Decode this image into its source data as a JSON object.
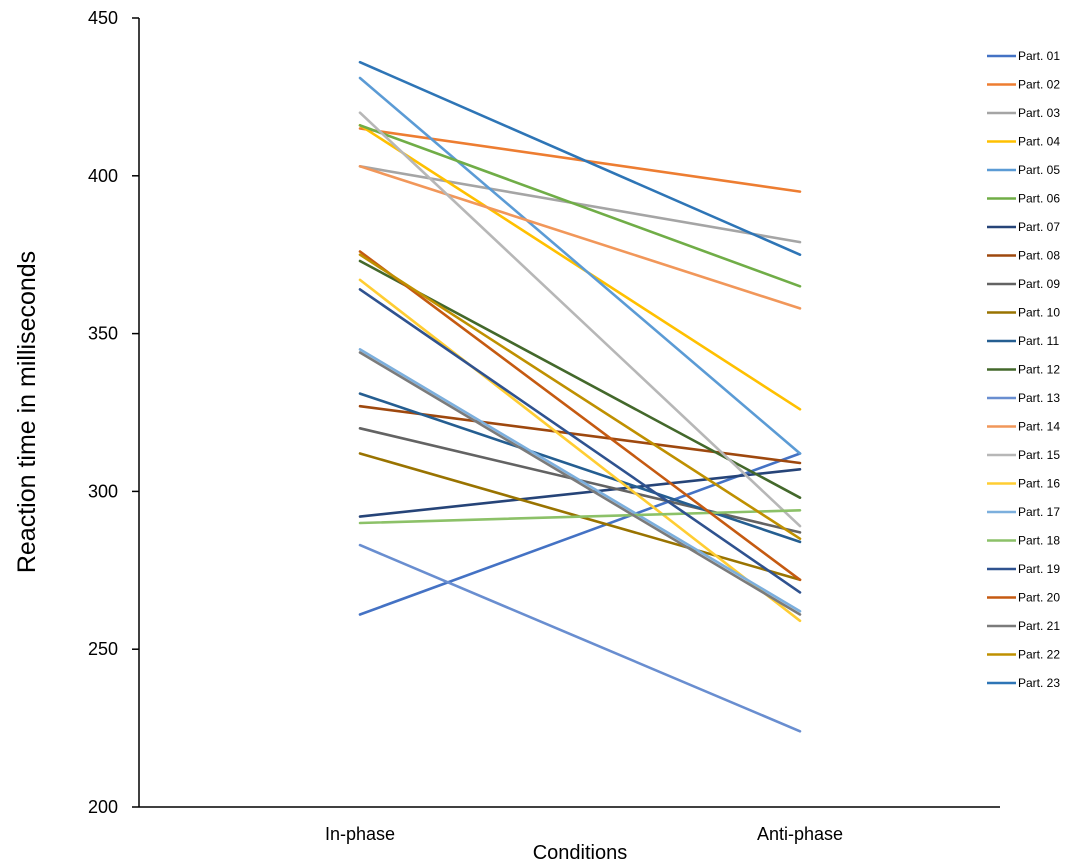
{
  "chart_data": {
    "type": "line",
    "title": "",
    "xlabel": "Conditions",
    "ylabel": "Reaction time in milliseconds",
    "categories": [
      "In-phase",
      "Anti-phase"
    ],
    "ylim": [
      200,
      450
    ],
    "yticks": [
      "200",
      "250",
      "300",
      "350",
      "400",
      "450"
    ],
    "grid": false,
    "legend_position": "right",
    "series": [
      {
        "name": "Part. 01",
        "color": "#4472C4",
        "values": [
          261,
          312
        ]
      },
      {
        "name": "Part. 02",
        "color": "#ED7D31",
        "values": [
          415,
          395
        ]
      },
      {
        "name": "Part. 03",
        "color": "#A5A5A5",
        "values": [
          403,
          379
        ]
      },
      {
        "name": "Part. 04",
        "color": "#FFC000",
        "values": [
          416,
          326
        ]
      },
      {
        "name": "Part. 05",
        "color": "#5B9BD5",
        "values": [
          431,
          312
        ]
      },
      {
        "name": "Part. 06",
        "color": "#70AD47",
        "values": [
          416,
          365
        ]
      },
      {
        "name": "Part. 07",
        "color": "#264478",
        "values": [
          292,
          307
        ]
      },
      {
        "name": "Part. 08",
        "color": "#9E480E",
        "values": [
          327,
          309
        ]
      },
      {
        "name": "Part. 09",
        "color": "#636363",
        "values": [
          320,
          287
        ]
      },
      {
        "name": "Part. 10",
        "color": "#997300",
        "values": [
          312,
          272
        ]
      },
      {
        "name": "Part. 11",
        "color": "#255E91",
        "values": [
          331,
          284
        ]
      },
      {
        "name": "Part. 12",
        "color": "#43682B",
        "values": [
          373,
          298
        ]
      },
      {
        "name": "Part. 13",
        "color": "#698ED0",
        "values": [
          283,
          224
        ]
      },
      {
        "name": "Part. 14",
        "color": "#F1975A",
        "values": [
          403,
          358
        ]
      },
      {
        "name": "Part. 15",
        "color": "#B7B7B7",
        "values": [
          420,
          289
        ]
      },
      {
        "name": "Part. 16",
        "color": "#FFCD33",
        "values": [
          367,
          259
        ]
      },
      {
        "name": "Part. 17",
        "color": "#7CAFDD",
        "values": [
          345,
          262
        ]
      },
      {
        "name": "Part. 18",
        "color": "#8CC168",
        "values": [
          290,
          294
        ]
      },
      {
        "name": "Part. 19",
        "color": "#2F528F",
        "values": [
          364,
          268
        ]
      },
      {
        "name": "Part. 20",
        "color": "#C55A11",
        "values": [
          376,
          272
        ]
      },
      {
        "name": "Part. 21",
        "color": "#7B7B7B",
        "values": [
          344,
          261
        ]
      },
      {
        "name": "Part. 22",
        "color": "#BF9000",
        "values": [
          375,
          285
        ]
      },
      {
        "name": "Part. 23",
        "color": "#2E75B6",
        "values": [
          436,
          375
        ]
      }
    ]
  }
}
